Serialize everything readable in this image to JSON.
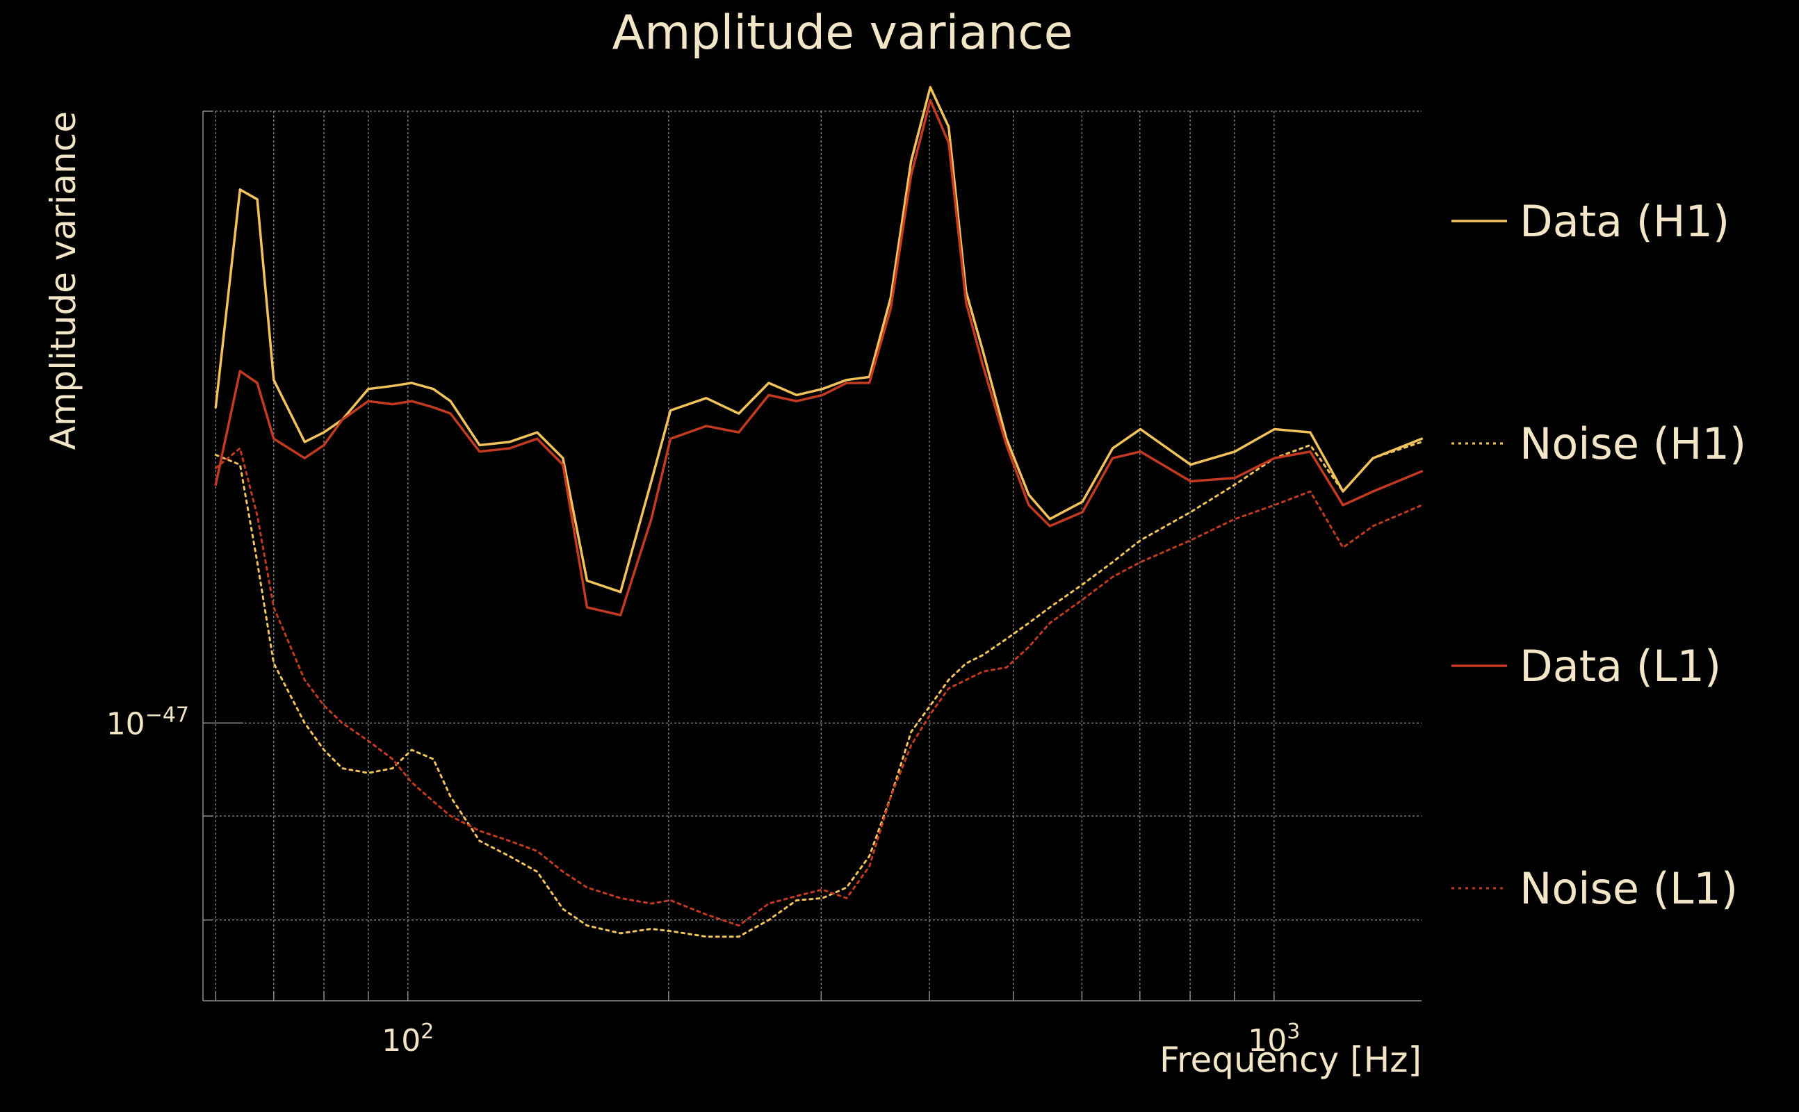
{
  "chart_data": {
    "type": "line",
    "title": "Amplitude variance",
    "xlabel": "Frequency [Hz]",
    "ylabel": "Amplitude variance",
    "xscale": "log",
    "yscale": "log",
    "xlim": [
      58,
      1480
    ],
    "ylim": [
      7.3e-48,
      2e-47
    ],
    "xticks": [
      {
        "value": 100,
        "base": "10",
        "exp": "2"
      },
      {
        "value": 1000,
        "base": "10",
        "exp": "3"
      }
    ],
    "yticks": [
      {
        "value": 1e-47,
        "base": "10",
        "exp": "−47"
      }
    ],
    "grid": true,
    "legend": "right",
    "x": [
      60,
      64,
      67,
      70,
      76,
      80,
      84,
      90,
      96,
      101,
      107,
      112,
      121,
      131,
      141,
      151,
      161,
      176,
      191,
      201,
      221,
      241,
      261,
      281,
      301,
      321,
      341,
      361,
      381,
      401,
      421,
      441,
      461,
      491,
      521,
      551,
      601,
      651,
      701,
      801,
      901,
      1001,
      1101,
      1201,
      1301,
      1481
    ],
    "series": [
      {
        "name": "Data (H1)",
        "color": "#f2c35c",
        "style": "solid",
        "values": [
          1.43e-47,
          1.83e-47,
          1.81e-47,
          1.475e-47,
          1.375e-47,
          1.39e-47,
          1.41e-47,
          1.46e-47,
          1.465e-47,
          1.47e-47,
          1.46e-47,
          1.44e-47,
          1.37e-47,
          1.375e-47,
          1.39e-47,
          1.35e-47,
          1.175e-47,
          1.16e-47,
          1.315e-47,
          1.425e-47,
          1.445e-47,
          1.42e-47,
          1.47e-47,
          1.45e-47,
          1.46e-47,
          1.475e-47,
          1.48e-47,
          1.62e-47,
          1.89e-47,
          2.055e-47,
          1.965e-47,
          1.63e-47,
          1.525e-47,
          1.38e-47,
          1.295e-47,
          1.26e-47,
          1.285e-47,
          1.365e-47,
          1.395e-47,
          1.34e-47,
          1.36e-47,
          1.395e-47,
          1.39e-47,
          1.3e-47,
          1.35e-47,
          1.38e-47
        ]
      },
      {
        "name": "Noise (H1)",
        "color": "#f2c35c",
        "style": "dotted",
        "values": [
          1.355e-47,
          1.34e-47,
          1.2e-47,
          1.07e-47,
          1e-47,
          9.7e-48,
          9.5e-48,
          9.45e-48,
          9.5e-48,
          9.7e-48,
          9.6e-48,
          9.2e-48,
          8.75e-48,
          8.6e-48,
          8.45e-48,
          8.1e-48,
          7.95e-48,
          7.88e-48,
          7.92e-48,
          7.9e-48,
          7.85e-48,
          7.85e-48,
          8e-48,
          8.18e-48,
          8.2e-48,
          8.3e-48,
          8.6e-48,
          9.2e-48,
          9.9e-48,
          1.02e-47,
          1.05e-47,
          1.07e-47,
          1.08e-47,
          1.1e-47,
          1.12e-47,
          1.14e-47,
          1.17e-47,
          1.2e-47,
          1.23e-47,
          1.27e-47,
          1.31e-47,
          1.35e-47,
          1.37e-47,
          1.3e-47,
          1.35e-47,
          1.375e-47
        ]
      },
      {
        "name": "Data (L1)",
        "color": "#c23a22",
        "style": "solid",
        "values": [
          1.31e-47,
          1.49e-47,
          1.47e-47,
          1.38e-47,
          1.35e-47,
          1.37e-47,
          1.41e-47,
          1.44e-47,
          1.435e-47,
          1.44e-47,
          1.43e-47,
          1.42e-47,
          1.36e-47,
          1.365e-47,
          1.38e-47,
          1.34e-47,
          1.14e-47,
          1.13e-47,
          1.26e-47,
          1.38e-47,
          1.4e-47,
          1.39e-47,
          1.45e-47,
          1.44e-47,
          1.45e-47,
          1.47e-47,
          1.47e-47,
          1.6e-47,
          1.86e-47,
          2.025e-47,
          1.93e-47,
          1.61e-47,
          1.5e-47,
          1.37e-47,
          1.28e-47,
          1.25e-47,
          1.27e-47,
          1.35e-47,
          1.36e-47,
          1.315e-47,
          1.32e-47,
          1.35e-47,
          1.36e-47,
          1.28e-47,
          1.3e-47,
          1.33e-47
        ]
      },
      {
        "name": "Noise (L1)",
        "color": "#c23a22",
        "style": "dotted",
        "values": [
          1.335e-47,
          1.365e-47,
          1.265e-47,
          1.14e-47,
          1.05e-47,
          1.02e-47,
          1e-47,
          9.8e-48,
          9.6e-48,
          9.35e-48,
          9.15e-48,
          9e-48,
          8.85e-48,
          8.75e-48,
          8.65e-48,
          8.45e-48,
          8.3e-48,
          8.2e-48,
          8.15e-48,
          8.18e-48,
          8.05e-48,
          7.95e-48,
          8.15e-48,
          8.22e-48,
          8.28e-48,
          8.2e-48,
          8.5e-48,
          9.2e-48,
          9.75e-48,
          1.01e-47,
          1.04e-47,
          1.05e-47,
          1.06e-47,
          1.065e-47,
          1.09e-47,
          1.12e-47,
          1.15e-47,
          1.18e-47,
          1.2e-47,
          1.23e-47,
          1.26e-47,
          1.28e-47,
          1.3e-47,
          1.22e-47,
          1.25e-47,
          1.28e-47
        ]
      }
    ]
  }
}
